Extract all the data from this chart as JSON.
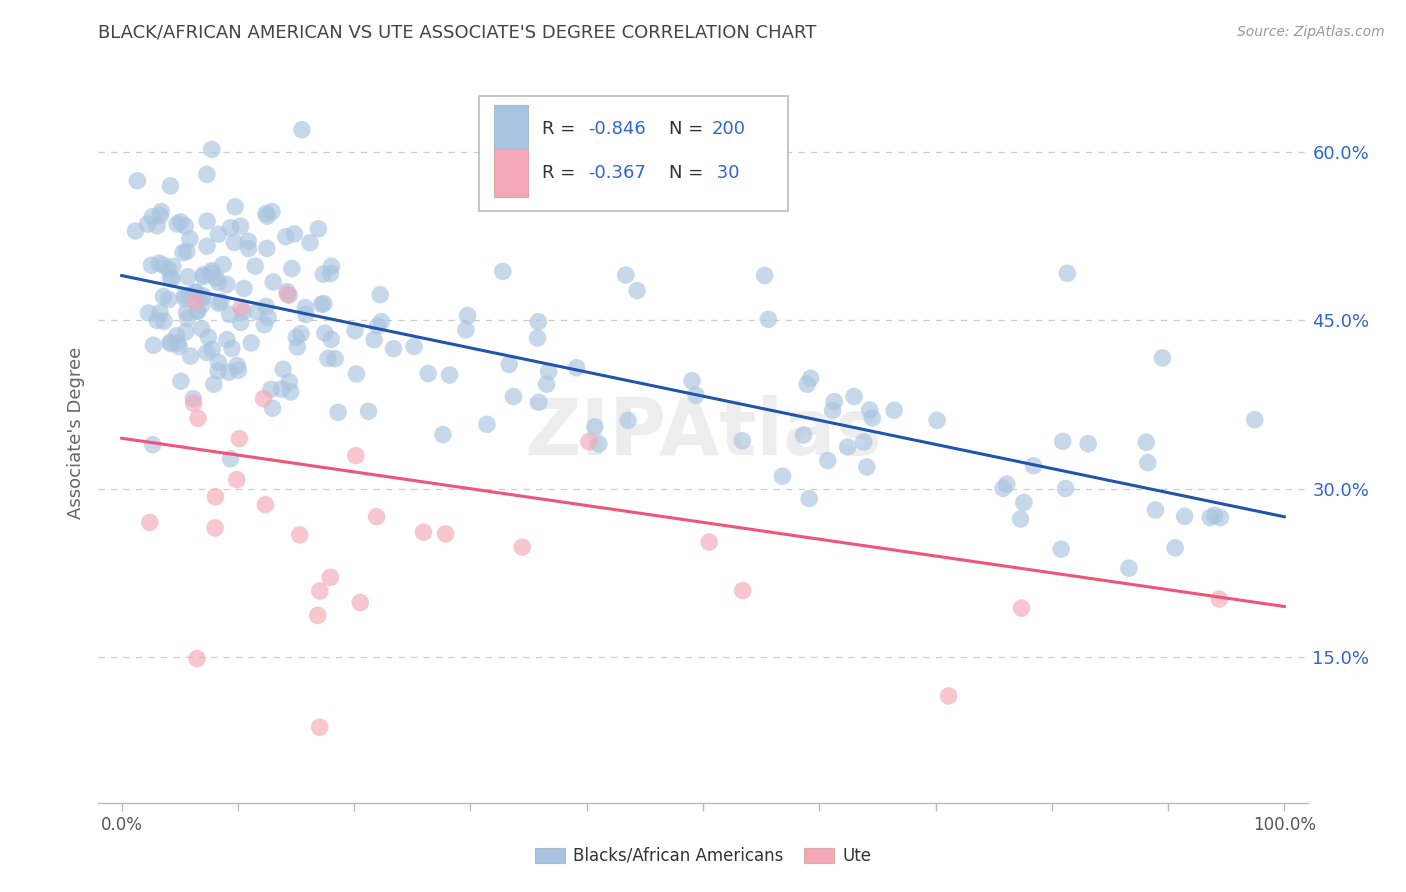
{
  "title": "BLACK/AFRICAN AMERICAN VS UTE ASSOCIATE'S DEGREE CORRELATION CHART",
  "source": "Source: ZipAtlas.com",
  "ylabel": "Associate's Degree",
  "watermark": "ZIPAtlas",
  "legend_blue_r_label": "R = ",
  "legend_blue_r_val": "-0.846",
  "legend_blue_n_label": "  N = ",
  "legend_blue_n_val": "200",
  "legend_pink_r_val": "-0.367",
  "legend_pink_n_val": " 30",
  "yticks": [
    0.15,
    0.3,
    0.45,
    0.6
  ],
  "ytick_labels": [
    "15.0%",
    "30.0%",
    "45.0%",
    "60.0%"
  ],
  "blue_color": "#A8C4E0",
  "pink_color": "#F4A8B8",
  "blue_line_color": "#2255AA",
  "pink_line_color": "#EE5577",
  "background_color": "#FFFFFF",
  "grid_color": "#CCCCCC",
  "title_color": "#444444",
  "right_tick_color": "#3366CC",
  "legend_text_color": "#222222",
  "legend_val_color": "#3366CC",
  "blue_line_x0": 0.0,
  "blue_line_y0": 0.49,
  "blue_line_x1": 1.0,
  "blue_line_y1": 0.275,
  "pink_line_x0": 0.0,
  "pink_line_y0": 0.345,
  "pink_line_x1": 1.0,
  "pink_line_y1": 0.195,
  "ylim_min": 0.02,
  "ylim_max": 0.68,
  "xlim_min": -0.02,
  "xlim_max": 1.02
}
